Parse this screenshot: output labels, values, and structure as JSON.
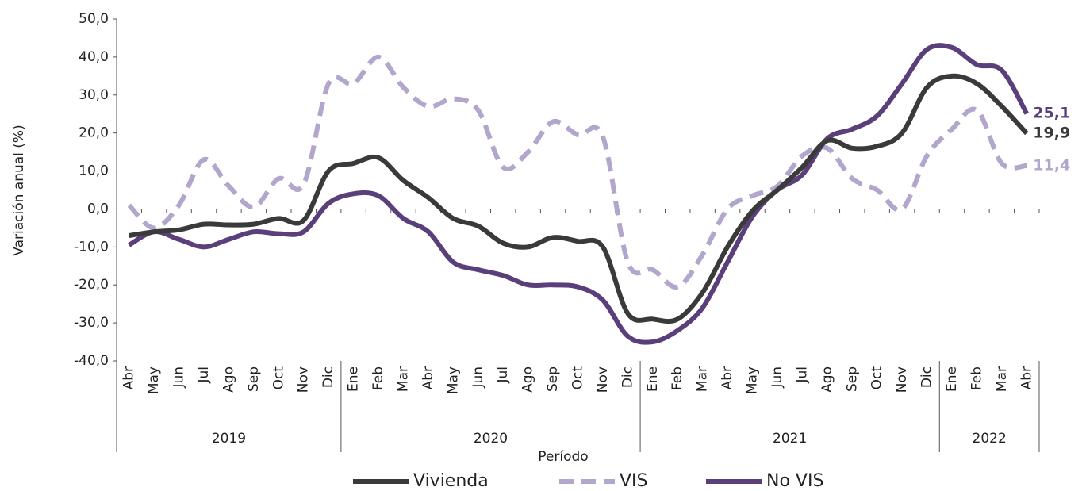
{
  "chart_data": {
    "type": "line",
    "y_axis_label": "Variación anual (%)",
    "x_axis_label": "Período",
    "category_groups": [
      {
        "name": "2019",
        "categories": [
          "Abr",
          "May",
          "Jun",
          "Jul",
          "Ago",
          "Sep",
          "Oct",
          "Nov",
          "Dic"
        ]
      },
      {
        "name": "2020",
        "categories": [
          "Ene",
          "Feb",
          "Mar",
          "Abr",
          "May",
          "Jun",
          "Jul",
          "Ago",
          "Sep",
          "Oct",
          "Nov",
          "Dic"
        ]
      },
      {
        "name": "2021",
        "categories": [
          "Ene",
          "Feb",
          "Mar",
          "Abr",
          "May",
          "Jun",
          "Jul",
          "Ago",
          "Sep",
          "Oct",
          "Nov",
          "Dic"
        ]
      },
      {
        "name": "2022",
        "categories": [
          "Ene",
          "Feb",
          "Mar",
          "Abr"
        ]
      }
    ],
    "series": [
      {
        "name": "Vivienda",
        "color": "#3a3a3a",
        "dashed": false,
        "end_label": "19,9",
        "values": [
          -7,
          -6,
          -5.5,
          -4,
          -4.2,
          -4,
          -2.5,
          -3,
          10,
          12,
          13.5,
          7.5,
          3,
          -2.5,
          -4.5,
          -9,
          -10,
          -7.5,
          -8.5,
          -10,
          -27.5,
          -29,
          -29,
          -22,
          -10,
          -0.5,
          5,
          11,
          18,
          16,
          16.5,
          20,
          32,
          35,
          33,
          27,
          19.9
        ]
      },
      {
        "name": "VIS",
        "color": "#b3a6cc",
        "dashed": true,
        "end_label": "11,4",
        "values": [
          1,
          -5,
          1,
          13,
          6,
          0.5,
          8,
          6.5,
          33,
          33,
          40,
          32,
          27,
          29,
          26,
          11,
          15,
          23,
          19.5,
          19,
          -14,
          -16,
          -20.5,
          -12,
          0,
          3.5,
          6,
          14,
          16,
          8,
          5,
          0,
          14,
          21,
          26,
          12,
          11.4
        ]
      },
      {
        "name": "No VIS",
        "color": "#5b3f7a",
        "dashed": false,
        "end_label": "25,1",
        "values": [
          -9.5,
          -6,
          -8,
          -10,
          -8,
          -6,
          -6.5,
          -6,
          1.5,
          4,
          3.5,
          -2.5,
          -6,
          -14,
          -16,
          -17.5,
          -20,
          -20,
          -20.5,
          -24,
          -33.5,
          -35,
          -32,
          -26,
          -14,
          -2,
          5,
          9,
          18.5,
          21,
          24.5,
          33,
          42,
          42.5,
          38,
          36.5,
          25.1
        ]
      }
    ],
    "ylim": [
      -40,
      50
    ],
    "yticks": [
      {
        "value": -40,
        "label": "-40,0"
      },
      {
        "value": -30,
        "label": "-30,0"
      },
      {
        "value": -20,
        "label": "-20,0"
      },
      {
        "value": -10,
        "label": "-10,0"
      },
      {
        "value": 0,
        "label": "0,0"
      },
      {
        "value": 10,
        "label": "10,0"
      },
      {
        "value": 20,
        "label": "20,0"
      },
      {
        "value": 30,
        "label": "30,0"
      },
      {
        "value": 40,
        "label": "40,0"
      },
      {
        "value": 50,
        "label": "50,0"
      }
    ],
    "grid": false,
    "legend": "bottom"
  }
}
